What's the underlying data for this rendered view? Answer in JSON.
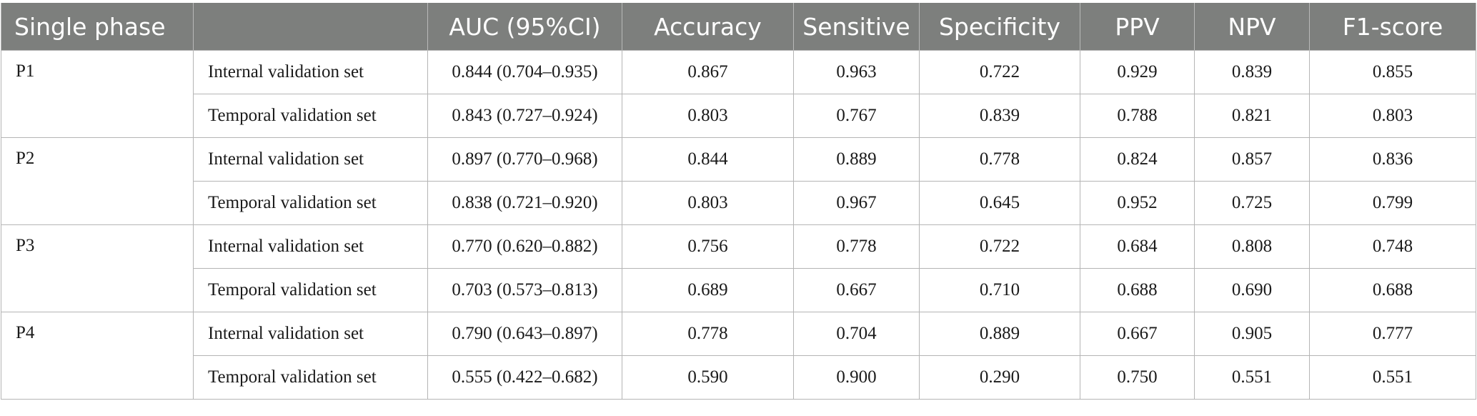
{
  "table": {
    "headers": [
      "Single phase",
      "",
      "AUC (95%CI)",
      "Accuracy",
      "Sensitive",
      "Specificity",
      "PPV",
      "NPV",
      "F1-score"
    ],
    "groups": [
      {
        "phase": "P1",
        "rows": [
          [
            "Internal validation set",
            "0.844 (0.704–0.935)",
            "0.867",
            "0.963",
            "0.722",
            "0.929",
            "0.839",
            "0.855"
          ],
          [
            "Temporal validation set",
            "0.843 (0.727–0.924)",
            "0.803",
            "0.767",
            "0.839",
            "0.788",
            "0.821",
            "0.803"
          ]
        ]
      },
      {
        "phase": "P2",
        "rows": [
          [
            "Internal validation set",
            "0.897 (0.770–0.968)",
            "0.844",
            "0.889",
            "0.778",
            "0.824",
            "0.857",
            "0.836"
          ],
          [
            "Temporal validation set",
            "0.838 (0.721–0.920)",
            "0.803",
            "0.967",
            "0.645",
            "0.952",
            "0.725",
            "0.799"
          ]
        ]
      },
      {
        "phase": "P3",
        "rows": [
          [
            "Internal validation set",
            "0.770 (0.620–0.882)",
            "0.756",
            "0.778",
            "0.722",
            "0.684",
            "0.808",
            "0.748"
          ],
          [
            "Temporal validation set",
            "0.703 (0.573–0.813)",
            "0.689",
            "0.667",
            "0.710",
            "0.688",
            "0.690",
            "0.688"
          ]
        ]
      },
      {
        "phase": "P4",
        "rows": [
          [
            "Internal validation set",
            "0.790 (0.643–0.897)",
            "0.778",
            "0.704",
            "0.889",
            "0.667",
            "0.905",
            "0.777"
          ],
          [
            "Temporal validation set",
            "0.555 (0.422–0.682)",
            "0.590",
            "0.900",
            "0.290",
            "0.750",
            "0.551",
            "0.551"
          ]
        ]
      }
    ]
  }
}
